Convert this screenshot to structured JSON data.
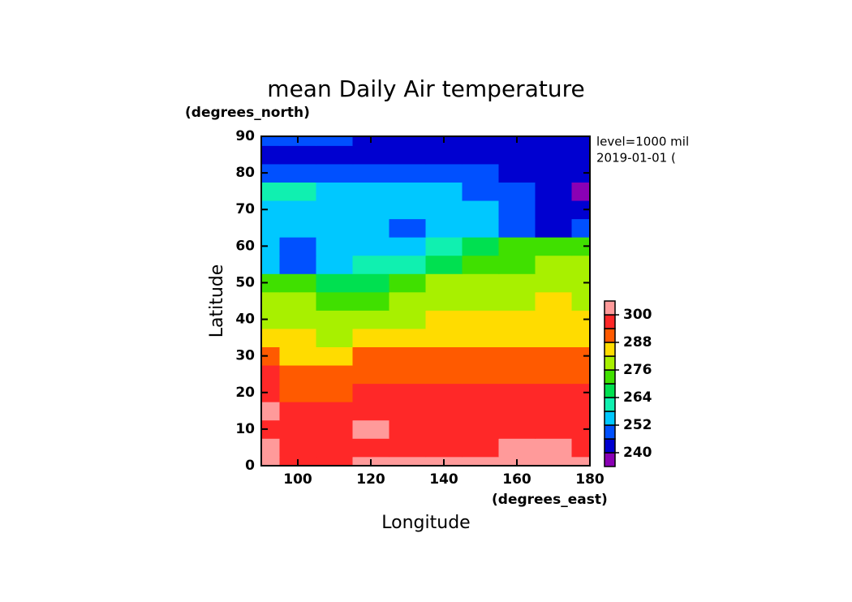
{
  "chart_data": {
    "type": "contour",
    "title": "mean Daily Air temperature",
    "y_units": "(degrees_north)",
    "ylabel": "Latitude",
    "x_units": "(degrees_east)",
    "xlabel": "Longitude",
    "annotations": [
      "level=1000 mil",
      "2019-01-01 ("
    ],
    "x": [
      90,
      100,
      110,
      120,
      130,
      140,
      150,
      160,
      170,
      180
    ],
    "y": [
      0,
      5,
      10,
      15,
      20,
      25,
      30,
      35,
      40,
      45,
      50,
      55,
      60,
      65,
      70,
      75,
      80,
      85,
      90
    ],
    "z": [
      [
        300.5,
        299,
        299,
        300.5,
        301,
        301,
        300.5,
        301,
        301,
        300.5
      ],
      [
        300,
        299,
        299,
        299.5,
        299.5,
        299.5,
        299.5,
        300,
        300,
        299.5
      ],
      [
        299,
        299,
        298,
        300.5,
        299,
        298,
        298,
        298,
        298,
        298
      ],
      [
        300.5,
        298,
        297,
        297,
        297,
        297,
        297,
        297,
        297,
        296
      ],
      [
        296,
        292,
        293,
        295,
        295,
        295,
        295,
        295,
        295,
        294
      ],
      [
        295,
        290,
        291,
        291,
        292,
        292,
        292,
        291,
        290,
        289
      ],
      [
        291,
        287,
        285,
        288,
        289,
        289,
        289,
        288,
        288,
        288
      ],
      [
        286,
        284,
        278,
        282,
        284,
        286,
        286,
        286,
        286,
        285
      ],
      [
        280,
        280,
        276,
        277,
        280,
        282,
        283,
        283,
        284,
        283
      ],
      [
        276,
        276,
        274,
        274,
        276,
        279,
        280,
        281,
        282,
        281
      ],
      [
        272,
        271,
        268,
        265,
        270,
        276,
        277,
        278,
        279,
        279
      ],
      [
        254,
        250,
        257,
        260,
        258,
        268,
        271,
        275,
        276,
        276
      ],
      [
        252,
        249,
        255,
        255,
        252,
        262,
        268,
        270,
        271,
        272
      ],
      [
        255,
        254,
        254,
        252,
        249,
        254,
        254,
        250,
        245,
        247
      ],
      [
        255,
        254,
        255,
        256,
        255,
        254,
        253,
        246,
        244,
        243
      ],
      [
        260,
        258,
        255,
        254,
        254,
        253,
        250,
        246,
        244,
        239
      ],
      [
        247,
        246,
        247,
        248,
        249,
        250,
        248,
        244,
        242,
        243
      ],
      [
        244,
        244,
        245,
        245,
        244,
        243,
        243,
        243,
        242,
        242
      ],
      [
        246,
        246,
        246,
        245,
        245,
        244,
        244,
        244,
        244,
        244
      ]
    ],
    "levels": [
      240,
      246,
      252,
      258,
      264,
      270,
      276,
      282,
      288,
      294,
      300
    ],
    "colors": [
      "#8a00b4",
      "#0000d0",
      "#0050ff",
      "#00c8ff",
      "#10f0b0",
      "#00e050",
      "#40e000",
      "#a8f000",
      "#ffdc00",
      "#ff5a00",
      "#ff2828",
      "#ff9a9a"
    ],
    "colorbar_ticks": [
      240,
      252,
      264,
      276,
      288,
      300
    ],
    "xlim": [
      90,
      180
    ],
    "ylim": [
      0,
      90
    ],
    "xticks": [
      100,
      120,
      140,
      160,
      180
    ],
    "yticks": [
      0,
      10,
      20,
      30,
      40,
      50,
      60,
      70,
      80,
      90
    ]
  }
}
